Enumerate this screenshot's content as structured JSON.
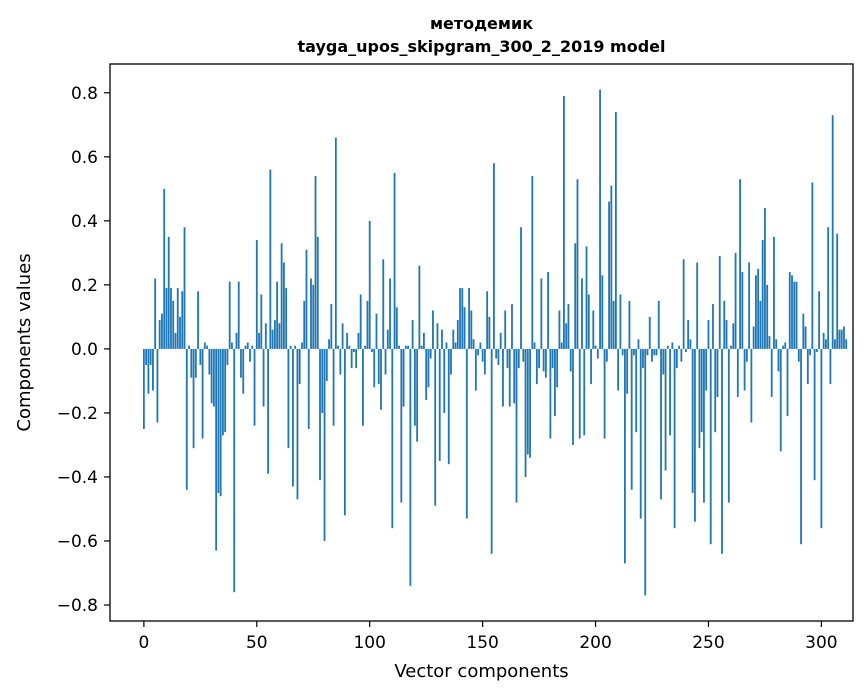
{
  "chart_data": {
    "type": "bar",
    "title_line1": "методемик",
    "title_line2": "tayga_upos_skipgram_300_2_2019 model",
    "xlabel": "Vector components",
    "ylabel": "Components values",
    "xlim": [
      -15,
      314
    ],
    "ylim": [
      -0.85,
      0.89
    ],
    "xticks": [
      0,
      50,
      100,
      150,
      200,
      250,
      300
    ],
    "xtick_labels": [
      "0",
      "50",
      "100",
      "150",
      "200",
      "250",
      "300"
    ],
    "yticks": [
      0.8,
      0.6,
      0.4,
      0.2,
      0.0,
      -0.2,
      -0.4,
      -0.6,
      -0.8
    ],
    "ytick_labels": [
      "0.8",
      "0.6",
      "0.4",
      "0.2",
      "0.0",
      "−0.2",
      "−0.4",
      "−0.6",
      "−0.8"
    ],
    "bar_color": "#1f77b4",
    "values": [
      -0.25,
      -0.05,
      -0.14,
      -0.05,
      -0.13,
      0.22,
      -0.23,
      0.09,
      0.11,
      0.5,
      0.19,
      0.35,
      0.19,
      0.15,
      0.05,
      0.19,
      0.1,
      0.18,
      0.38,
      -0.44,
      0.01,
      -0.09,
      -0.31,
      -0.09,
      0.18,
      -0.05,
      -0.28,
      0.02,
      0.01,
      -0.08,
      -0.17,
      -0.18,
      -0.63,
      -0.45,
      -0.46,
      -0.27,
      -0.26,
      -0.05,
      0.21,
      0.02,
      -0.76,
      0.05,
      0.21,
      -0.09,
      -0.14,
      0.01,
      0.02,
      -0.04,
      0.01,
      -0.24,
      0.34,
      0.05,
      0.17,
      -0.18,
      0.08,
      -0.39,
      0.56,
      0.06,
      0.09,
      0.21,
      0.08,
      0.33,
      0.27,
      0.19,
      -0.31,
      0.01,
      -0.43,
      0.01,
      -0.47,
      -0.11,
      0.02,
      0.15,
      0.31,
      -0.25,
      0.22,
      0.2,
      0.54,
      0.35,
      -0.41,
      -0.2,
      -0.6,
      -0.1,
      0.03,
      0.14,
      -0.24,
      0.66,
      0.01,
      -0.08,
      0.08,
      -0.52,
      0.05,
      0.01,
      -0.06,
      -0.01,
      -0.06,
      0.05,
      0.17,
      -0.24,
      0.01,
      0.15,
      0.4,
      -0.01,
      -0.12,
      0.11,
      -0.11,
      -0.19,
      0.28,
      -0.08,
      0.06,
      0.22,
      -0.56,
      0.55,
      0.13,
      0.01,
      -0.48,
      -0.18,
      0.01,
      0.01,
      -0.74,
      0.09,
      -0.24,
      -0.29,
      0.26,
      0.01,
      0.05,
      -0.16,
      -0.12,
      -0.03,
      0.12,
      -0.49,
      0.08,
      -0.35,
      0.06,
      -0.2,
      0.02,
      -0.36,
      -0.08,
      0.06,
      0.02,
      0.09,
      0.19,
      0.19,
      0.13,
      -0.53,
      0.19,
      0.12,
      0.03,
      -0.13,
      -0.02,
      0.02,
      -0.04,
      -0.08,
      0.18,
      0.1,
      -0.64,
      0.58,
      -0.03,
      -0.05,
      0.05,
      -0.18,
      0.12,
      -0.06,
      -0.18,
      0.14,
      -0.17,
      -0.48,
      -0.06,
      0.38,
      -0.04,
      -0.4,
      -0.33,
      -0.34,
      0.54,
      0.02,
      -0.11,
      -0.06,
      0.22,
      -0.07,
      -0.09,
      0.24,
      -0.28,
      -0.06,
      -0.21,
      -0.12,
      0.12,
      0.02,
      0.79,
      0.08,
      0.14,
      -0.07,
      -0.3,
      0.33,
      0.53,
      -0.28,
      0.22,
      -0.27,
      0.32,
      0.17,
      -0.11,
      0.12,
      0.01,
      -0.03,
      0.81,
      0.23,
      -0.28,
      -0.04,
      0.46,
      0.51,
      0.15,
      0.74,
      -0.13,
      0.17,
      -0.02,
      -0.67,
      -0.14,
      0.15,
      -0.44,
      -0.02,
      -0.26,
      0.03,
      -0.53,
      -0.06,
      -0.77,
      -0.02,
      0.1,
      -0.04,
      -0.02,
      -0.02,
      0.15,
      -0.47,
      -0.08,
      -0.38,
      0.01,
      -0.27,
      0.02,
      -0.56,
      -0.06,
      0.01,
      -0.04,
      0.28,
      -0.01,
      0.09,
      0.03,
      -0.45,
      -0.54,
      0.27,
      -0.31,
      -0.26,
      -0.48,
      -0.13,
      0.09,
      -0.61,
      0.14,
      -0.26,
      -0.15,
      0.29,
      -0.64,
      0.15,
      0.09,
      -0.48,
      0.01,
      0.08,
      0.3,
      -0.15,
      0.53,
      0.24,
      -0.13,
      -0.04,
      0.27,
      -0.23,
      0.07,
      0.23,
      0.25,
      0.15,
      0.34,
      0.44,
      0.2,
      0.04,
      -0.15,
      0.35,
      0.03,
      -0.07,
      -0.32,
      0.01,
      0.02,
      -0.21,
      0.24,
      0.23,
      0.21,
      0.21,
      -0.04,
      -0.61,
      0.11,
      0.07,
      -0.11,
      -0.02,
      0.52,
      -0.41,
      -0.01,
      0.18,
      -0.56,
      0.05,
      0.03,
      0.38,
      -0.11,
      0.73,
      0.03,
      0.36,
      0.06,
      0.06,
      0.07,
      0.03
    ]
  }
}
